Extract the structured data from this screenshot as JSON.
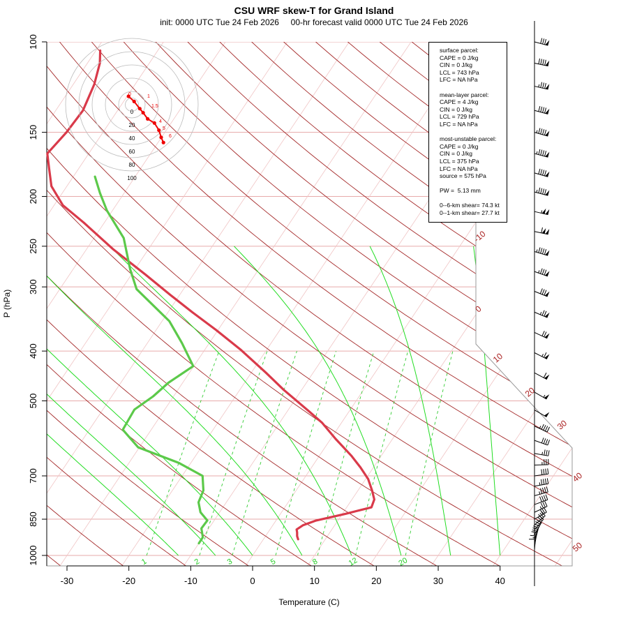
{
  "title": "CSU WRF skew-T for Grand Island",
  "subtitle": "init: 0000 UTC Tue 24 Feb 2026     00-hr forecast valid 0000 UTC Tue 24 Feb 2026",
  "stats": {
    "surface": [
      "surface parcel:",
      "CAPE = 0 J/kg",
      "CIN = 0 J/kg",
      "LCL = 743 hPa",
      "LFC = NA hPa"
    ],
    "mean_layer": [
      "mean-layer parcel:",
      "CAPE = 4 J/kg",
      "CIN = 0 J/kg",
      "LCL = 729 hPa",
      "LFC = NA hPa"
    ],
    "most_unstable": [
      "most-unstable parcel:",
      "CAPE = 0 J/kg",
      "CIN = 0 J/kg",
      "LCL = 375 hPa",
      "LFC = NA hPa",
      "source = 575 hPa"
    ],
    "pw": "PW =  5.13 mm",
    "shear": [
      "0--6-km shear= 74.3 kt",
      "0--1-km shear= 27.7 kt"
    ]
  },
  "chart_data": {
    "type": "line",
    "title": "CSU WRF skew-T for Grand Island",
    "xlabel": "Temperature (C)",
    "ylabel": "P (hPa)",
    "x_ticks": [
      -30,
      -20,
      -10,
      0,
      10,
      20,
      30,
      40
    ],
    "y_ticks": [
      100,
      150,
      200,
      250,
      300,
      400,
      500,
      700,
      850,
      1000
    ],
    "xlim": [
      -33,
      45
    ],
    "ylim": [
      1050,
      100
    ],
    "isotherm_labels": [
      -10,
      0,
      10,
      20,
      30,
      40,
      50
    ],
    "mixing_ratio_labels": [
      "1",
      "2",
      "3",
      "5",
      "8",
      "12",
      "20"
    ],
    "series": [
      {
        "name": "temperature",
        "color": "#d93a4a",
        "points": [
          [
            930,
            5.6
          ],
          [
            917,
            5.1
          ],
          [
            902,
            4.7
          ],
          [
            890,
            4.3
          ],
          [
            873,
            4.9
          ],
          [
            855,
            6.5
          ],
          [
            830,
            10.5
          ],
          [
            806,
            14.0
          ],
          [
            778,
            13.6
          ],
          [
            748,
            12.3
          ],
          [
            710,
            10.4
          ],
          [
            674,
            7.9
          ],
          [
            640,
            5.2
          ],
          [
            593,
            0.8
          ],
          [
            552,
            -3.1
          ],
          [
            524,
            -6.5
          ],
          [
            476,
            -12.9
          ],
          [
            441,
            -17.6
          ],
          [
            397,
            -24.3
          ],
          [
            364,
            -30.3
          ],
          [
            336,
            -36.1
          ],
          [
            311,
            -41.5
          ],
          [
            284,
            -47.7
          ],
          [
            253,
            -55.8
          ],
          [
            225,
            -63.3
          ],
          [
            208,
            -68.6
          ],
          [
            191,
            -72.5
          ],
          [
            177,
            -74.7
          ],
          [
            165,
            -76.7
          ],
          [
            150,
            -75.9
          ],
          [
            136,
            -75.6
          ],
          [
            121,
            -76.6
          ],
          [
            110,
            -78.0
          ],
          [
            104,
            -79.3
          ]
        ]
      },
      {
        "name": "dewpoint",
        "color": "#5cc94a",
        "points": [
          [
            947,
            -10.0
          ],
          [
            922,
            -10.0
          ],
          [
            886,
            -11.2
          ],
          [
            855,
            -11.1
          ],
          [
            824,
            -13.1
          ],
          [
            788,
            -14.5
          ],
          [
            747,
            -15.0
          ],
          [
            700,
            -16.7
          ],
          [
            660,
            -22.0
          ],
          [
            616,
            -30.2
          ],
          [
            569,
            -34.6
          ],
          [
            520,
            -34.9
          ],
          [
            490,
            -33.3
          ],
          [
            461,
            -32.3
          ],
          [
            428,
            -30.1
          ],
          [
            386,
            -34.4
          ],
          [
            350,
            -38.8
          ],
          [
            303,
            -47.6
          ],
          [
            277,
            -50.8
          ],
          [
            241,
            -55.2
          ],
          [
            213,
            -60.9
          ],
          [
            197,
            -63.9
          ],
          [
            183,
            -66.5
          ]
        ]
      }
    ],
    "hodograph": {
      "points": [
        [
          -3,
          0
        ],
        [
          2,
          5
        ],
        [
          7,
          12
        ],
        [
          10,
          16
        ],
        [
          14,
          22
        ],
        [
          20,
          26
        ],
        [
          24,
          33
        ],
        [
          26,
          40
        ],
        [
          28,
          45
        ]
      ],
      "ring_labels": [
        "0",
        "20",
        "40",
        "60",
        "80",
        "100"
      ],
      "height_labels": [
        "0",
        "1",
        "1.5",
        "4",
        "5",
        "6"
      ]
    },
    "wind_barbs": [
      {
        "p": 100,
        "speed": 82,
        "dir": 285
      },
      {
        "p": 110,
        "speed": 90,
        "dir": 282
      },
      {
        "p": 122,
        "speed": 85,
        "dir": 283
      },
      {
        "p": 136,
        "speed": 90,
        "dir": 285
      },
      {
        "p": 150,
        "speed": 95,
        "dir": 286
      },
      {
        "p": 165,
        "speed": 95,
        "dir": 285
      },
      {
        "p": 180,
        "speed": 90,
        "dir": 286
      },
      {
        "p": 196,
        "speed": 95,
        "dir": 285
      },
      {
        "p": 214,
        "speed": 105,
        "dir": 283
      },
      {
        "p": 234,
        "speed": 110,
        "dir": 282
      },
      {
        "p": 256,
        "speed": 95,
        "dir": 287
      },
      {
        "p": 280,
        "speed": 85,
        "dir": 290
      },
      {
        "p": 306,
        "speed": 80,
        "dir": 292
      },
      {
        "p": 336,
        "speed": 75,
        "dir": 293
      },
      {
        "p": 368,
        "speed": 70,
        "dir": 295
      },
      {
        "p": 403,
        "speed": 65,
        "dir": 297
      },
      {
        "p": 441,
        "speed": 60,
        "dir": 298
      },
      {
        "p": 481,
        "speed": 55,
        "dir": 300
      },
      {
        "p": 521,
        "speed": 50,
        "dir": 300
      },
      {
        "p": 560,
        "speed": 45,
        "dir": 295
      },
      {
        "p": 597,
        "speed": 40,
        "dir": 290
      },
      {
        "p": 633,
        "speed": 35,
        "dir": 280
      },
      {
        "p": 667,
        "speed": 35,
        "dir": 268
      },
      {
        "p": 700,
        "speed": 40,
        "dir": 262
      },
      {
        "p": 733,
        "speed": 45,
        "dir": 260
      },
      {
        "p": 765,
        "speed": 45,
        "dir": 255
      },
      {
        "p": 796,
        "speed": 40,
        "dir": 250
      },
      {
        "p": 824,
        "speed": 35,
        "dir": 245
      },
      {
        "p": 850,
        "speed": 30,
        "dir": 240
      },
      {
        "p": 872,
        "speed": 30,
        "dir": 230
      },
      {
        "p": 892,
        "speed": 25,
        "dir": 220
      },
      {
        "p": 911,
        "speed": 25,
        "dir": 210
      },
      {
        "p": 929,
        "speed": 20,
        "dir": 200
      },
      {
        "p": 945,
        "speed": 20,
        "dir": 195
      },
      {
        "p": 960,
        "speed": 15,
        "dir": 190
      },
      {
        "p": 975,
        "speed": 15,
        "dir": 185
      },
      {
        "p": 990,
        "speed": 10,
        "dir": 180
      }
    ]
  }
}
